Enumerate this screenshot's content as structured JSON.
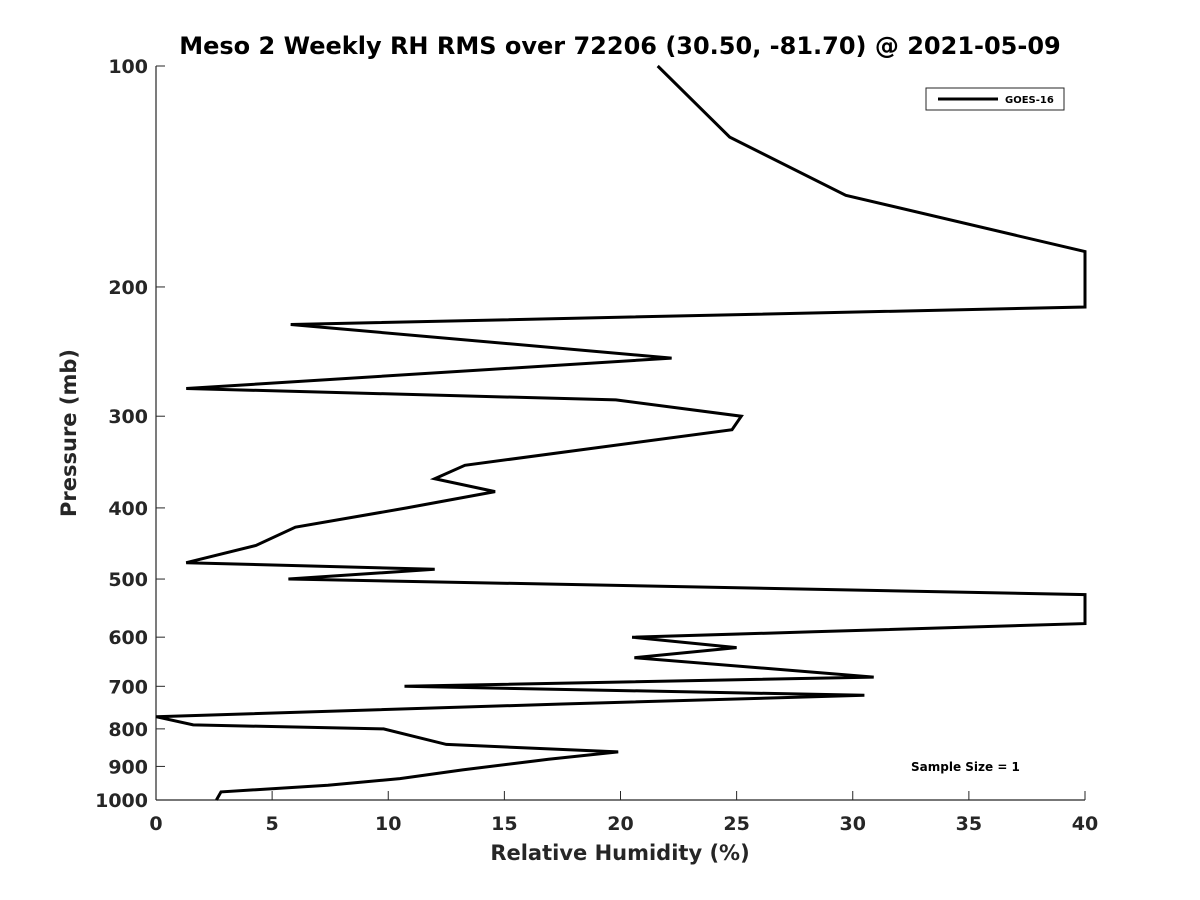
{
  "chart_data": {
    "type": "line",
    "title": "Meso 2 Weekly RH RMS over 72206 (30.50, -81.70) @ 2021-05-09",
    "xlabel": "Relative Humidity (%)",
    "ylabel": "Pressure (mb)",
    "xlim": [
      0,
      40
    ],
    "ylim": [
      100,
      1000
    ],
    "y_scale": "log",
    "y_reversed": true,
    "grid": false,
    "legend_position": "top-right",
    "x_ticks": [
      0,
      5,
      10,
      15,
      20,
      25,
      30,
      35,
      40
    ],
    "y_ticks": [
      100,
      200,
      300,
      400,
      500,
      600,
      700,
      800,
      900,
      1000
    ],
    "annotation": "Sample Size = 1",
    "series": [
      {
        "name": "GOES-16",
        "color": "#000000",
        "points": [
          [
            21.6,
            100
          ],
          [
            24.7,
            125
          ],
          [
            29.7,
            150
          ],
          [
            40.0,
            179
          ],
          [
            40.0,
            213
          ],
          [
            5.8,
            225
          ],
          [
            22.2,
            250
          ],
          [
            1.3,
            275
          ],
          [
            19.8,
            285
          ],
          [
            25.2,
            300
          ],
          [
            24.8,
            313
          ],
          [
            13.3,
            350
          ],
          [
            12.0,
            365
          ],
          [
            14.6,
            380
          ],
          [
            10.8,
            400
          ],
          [
            6.0,
            425
          ],
          [
            4.3,
            450
          ],
          [
            1.3,
            475
          ],
          [
            12.0,
            485
          ],
          [
            5.7,
            500
          ],
          [
            40.0,
            525
          ],
          [
            40.0,
            575
          ],
          [
            28.3,
            590
          ],
          [
            20.5,
            600
          ],
          [
            25.0,
            620
          ],
          [
            20.6,
            640
          ],
          [
            30.9,
            680
          ],
          [
            10.7,
            700
          ],
          [
            30.5,
            720
          ],
          [
            17.5,
            740
          ],
          [
            0.0,
            770
          ],
          [
            1.6,
            790
          ],
          [
            9.8,
            800
          ],
          [
            12.5,
            840
          ],
          [
            19.9,
            860
          ],
          [
            16.9,
            880
          ],
          [
            13.2,
            910
          ],
          [
            10.5,
            935
          ],
          [
            7.4,
            955
          ],
          [
            2.8,
            975
          ],
          [
            2.6,
            1000
          ]
        ]
      }
    ]
  }
}
